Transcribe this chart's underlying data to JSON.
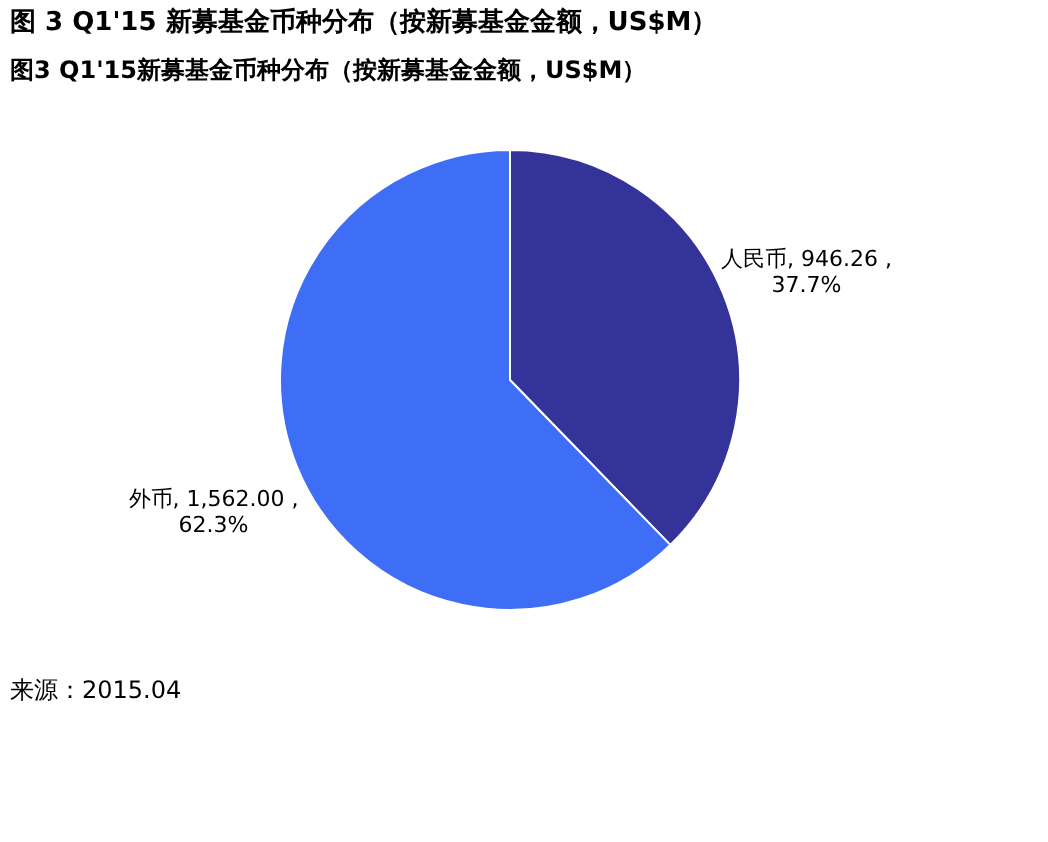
{
  "chart_data": {
    "type": "pie",
    "title": "图 3 Q1'15 新募基金币种分布（按新募基金金额，US$M）",
    "subtitle": "图3 Q1'15新募基金币种分布（按新募基金金额，US$M）",
    "categories": [
      "人民币",
      "外币"
    ],
    "values": [
      946.26,
      1562.0
    ],
    "colors": [
      "#333399",
      "#3d6ef5"
    ],
    "value_labels": [
      "946.26 ,\n37.7%",
      "1,562.00 ,\n62.3%"
    ],
    "legend": false,
    "annotations": [
      "来源：2015.04"
    ]
  }
}
